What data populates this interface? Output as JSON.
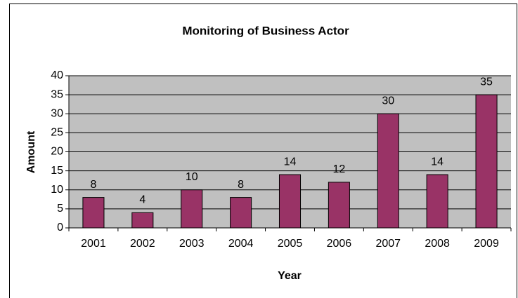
{
  "chart_data": {
    "type": "bar",
    "title": "Monitoring of Business Actor",
    "x_label": "Year",
    "y_label": "Amount",
    "categories": [
      "2001",
      "2002",
      "2003",
      "2004",
      "2005",
      "2006",
      "2007",
      "2008",
      "2009"
    ],
    "values": [
      8,
      4,
      10,
      8,
      14,
      12,
      30,
      14,
      35
    ],
    "color": "#993366",
    "ylim": [
      0,
      40
    ],
    "yticks": [
      0,
      5,
      10,
      15,
      20,
      25,
      30,
      35,
      40
    ],
    "grid": true
  }
}
